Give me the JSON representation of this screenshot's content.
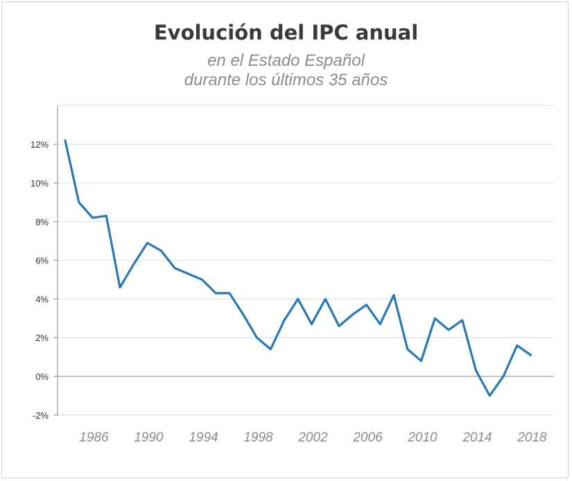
{
  "chart_data": {
    "type": "line",
    "title": "Evolución del IPC anual",
    "subtitle": [
      "en el Estado Español",
      "durante los últimos 35 años"
    ],
    "xlabel": "",
    "ylabel": "",
    "ylim": [
      -2,
      14
    ],
    "yticks": [
      {
        "value": -2,
        "label": "-2%"
      },
      {
        "value": 0,
        "label": "0%"
      },
      {
        "value": 2,
        "label": "2%"
      },
      {
        "value": 4,
        "label": "4%"
      },
      {
        "value": 6,
        "label": "6%"
      },
      {
        "value": 8,
        "label": "8%"
      },
      {
        "value": 10,
        "label": "10%"
      },
      {
        "value": 12,
        "label": "12%"
      }
    ],
    "xlim": [
      1983.9,
      2019.9
    ],
    "xticks": [
      "1986",
      "1990",
      "1994",
      "1998",
      "2002",
      "2006",
      "2010",
      "2014",
      "2018"
    ],
    "grid": true,
    "line_color": "#2878b5",
    "grid_color": "#cfdde8",
    "series": [
      {
        "x": [
          1984,
          1985,
          1986,
          1987,
          1988,
          1989,
          1990,
          1991,
          1992,
          1993,
          1994,
          1995,
          1996,
          1997,
          1998,
          1999,
          2000,
          2001,
          2002,
          2003,
          2004,
          2005,
          2006,
          2007,
          2008,
          2009,
          2010,
          2011,
          2012,
          2013,
          2014,
          2015,
          2016,
          2017,
          2018
        ],
        "values": [
          12.2,
          9.0,
          8.2,
          8.3,
          4.6,
          5.8,
          6.9,
          6.5,
          5.6,
          5.3,
          5.0,
          4.3,
          4.3,
          3.2,
          2.0,
          1.4,
          2.9,
          4.0,
          2.7,
          4.0,
          2.6,
          3.2,
          3.7,
          2.7,
          4.2,
          1.4,
          0.8,
          3.0,
          2.4,
          2.9,
          0.3,
          -1.0,
          0.0,
          1.6,
          1.1
        ]
      }
    ]
  }
}
